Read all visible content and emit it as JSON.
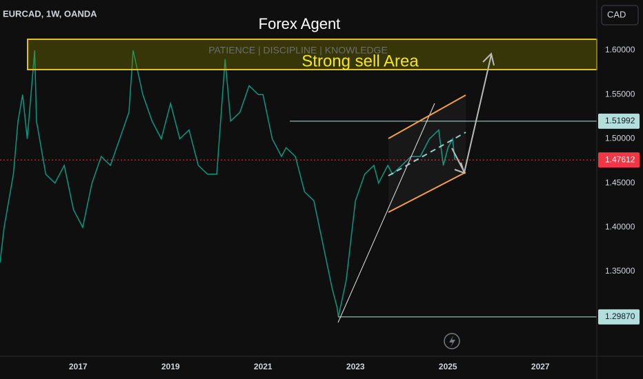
{
  "chart_data": {
    "type": "line",
    "symbol": "EURCAD, 1W, OANDA",
    "currency": "CAD",
    "title": "Forex Agent",
    "subtitle": "PATIENCE | DISCIPLINE | KNOWLEDGE",
    "annotation": "Strong sell Area",
    "color": "#089981",
    "x": [
      2015.31,
      2015.4,
      2015.5,
      2015.6,
      2015.7,
      2015.8,
      2015.9,
      2016.06,
      2016.1,
      2016.3,
      2016.5,
      2016.7,
      2016.9,
      2017.1,
      2017.3,
      2017.5,
      2017.7,
      2017.9,
      2018.1,
      2018.19,
      2018.4,
      2018.6,
      2018.8,
      2019.0,
      2019.2,
      2019.4,
      2019.6,
      2019.8,
      2020.0,
      2020.18,
      2020.3,
      2020.5,
      2020.7,
      2020.9,
      2021.0,
      2021.2,
      2021.4,
      2021.5,
      2021.7,
      2021.9,
      2022.1,
      2022.3,
      2022.5,
      2022.6,
      2022.63,
      2022.8,
      2023.0,
      2023.2,
      2023.4,
      2023.5,
      2023.7,
      2023.8,
      2024.0,
      2024.2,
      2024.4,
      2024.6,
      2024.8,
      2024.9,
      2025.0,
      2025.1,
      2025.15
    ],
    "values": [
      1.36,
      1.4,
      1.43,
      1.46,
      1.52,
      1.55,
      1.5,
      1.6,
      1.52,
      1.46,
      1.45,
      1.47,
      1.42,
      1.4,
      1.45,
      1.48,
      1.47,
      1.5,
      1.53,
      1.6,
      1.55,
      1.52,
      1.5,
      1.54,
      1.5,
      1.51,
      1.47,
      1.46,
      1.46,
      1.59,
      1.52,
      1.53,
      1.56,
      1.55,
      1.55,
      1.5,
      1.48,
      1.49,
      1.48,
      1.44,
      1.43,
      1.38,
      1.33,
      1.31,
      1.2987,
      1.34,
      1.43,
      1.46,
      1.47,
      1.45,
      1.47,
      1.46,
      1.47,
      1.48,
      1.48,
      1.5,
      1.51,
      1.47,
      1.49,
      1.5,
      1.47612
    ],
    "xlim": [
      2015.31,
      2028.22
    ],
    "xticks": [
      2017,
      2019,
      2021,
      2023,
      2025,
      2027
    ],
    "ylim": [
      1.2558,
      1.6569
    ],
    "yticks": [
      {
        "value": 1.35,
        "label": "1.35000"
      },
      {
        "value": 1.4,
        "label": "1.40000"
      },
      {
        "value": 1.45,
        "label": "1.45000"
      },
      {
        "value": 1.5,
        "label": "1.50000"
      },
      {
        "value": 1.55,
        "label": "1.55000"
      },
      {
        "value": 1.6,
        "label": "1.60000"
      }
    ],
    "levels": [
      1.51992,
      1.47612,
      {
        "value": 1.2987,
        "label": "1.29870"
      }
    ],
    "level_colors": [
      "#b2dfdb",
      "#f23645",
      "#b2dfdb"
    ]
  }
}
